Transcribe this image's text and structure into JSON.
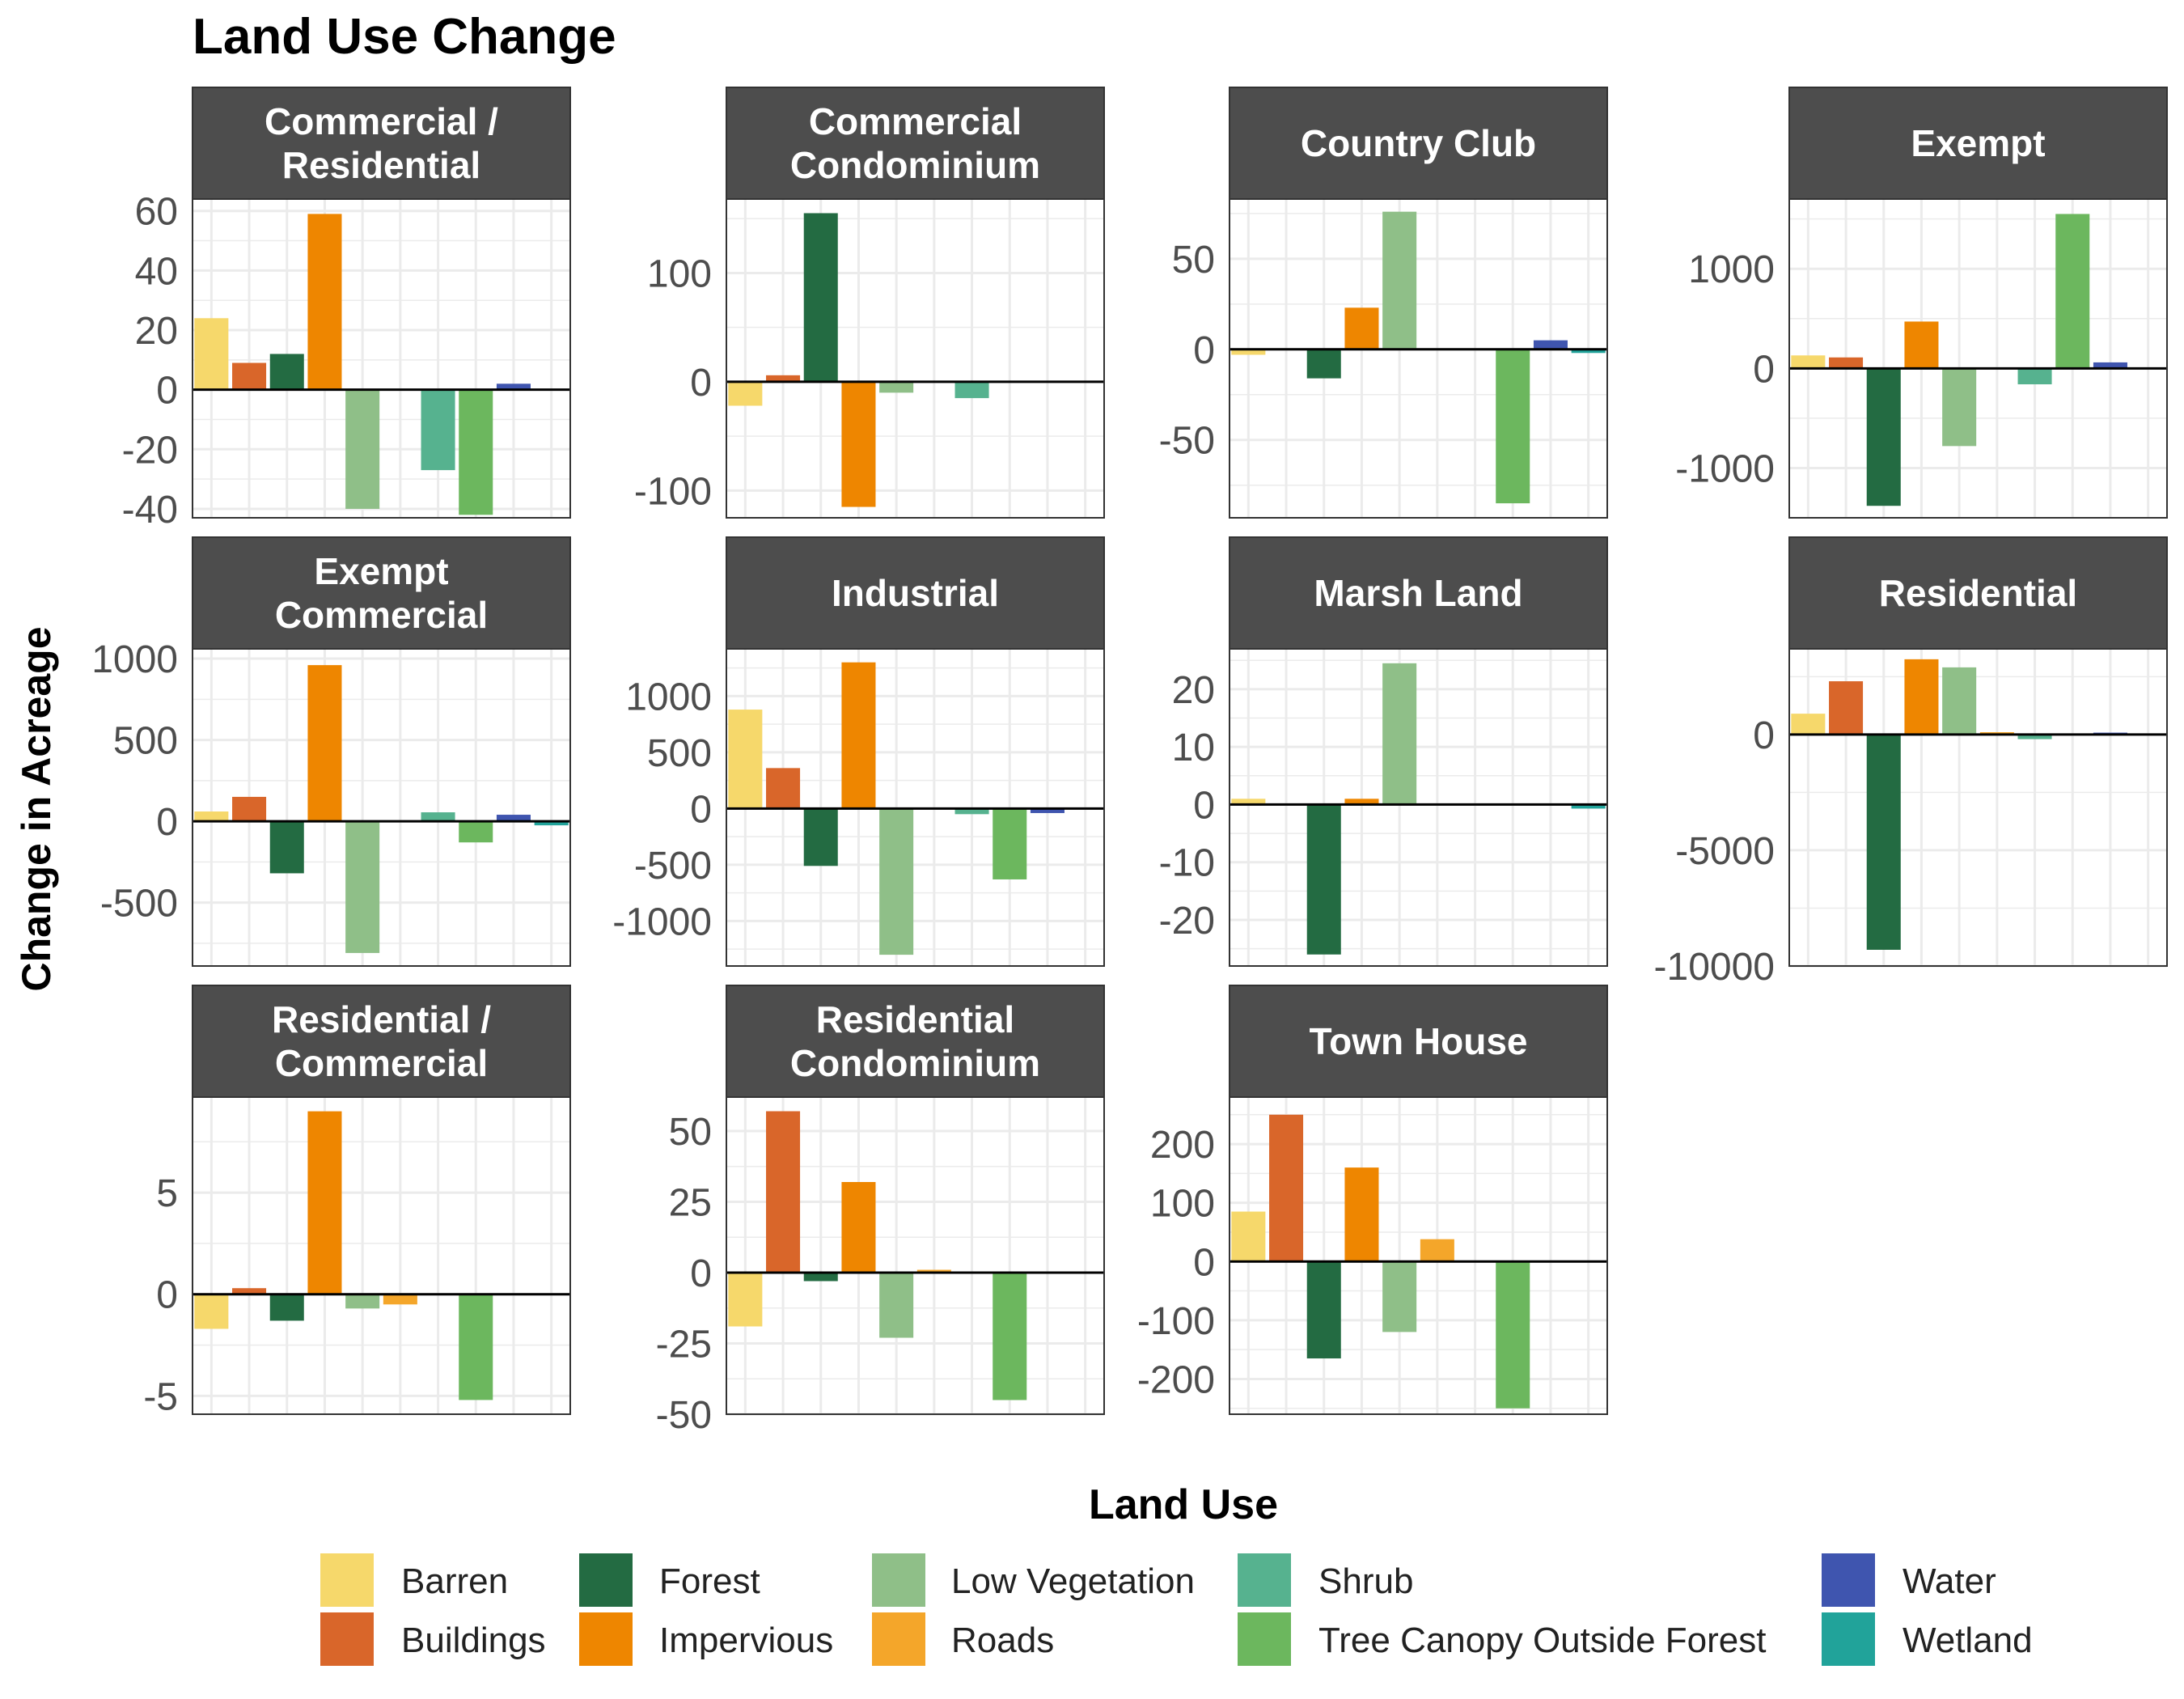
{
  "chart_data": {
    "type": "bar",
    "title": "Land Use Change",
    "ylabel": "Change in Acreage",
    "xlabel": "",
    "legend_title": "Land Use",
    "legend_position": "bottom",
    "grid": true,
    "colors": {
      "Barren": "#F6D86B",
      "Buildings": "#D9662A",
      "Forest": "#236B42",
      "Impervious": "#EE8600",
      "Low Vegetation": "#8FBF88",
      "Roads": "#F4A62A",
      "Shrub": "#56B28F",
      "Tree Canopy Outside Forest": "#6CB75E",
      "Water": "#3F55AF",
      "Wetland": "#21A39A"
    },
    "legend": [
      "Barren",
      "Buildings",
      "Forest",
      "Impervious",
      "Low Vegetation",
      "Roads",
      "Shrub",
      "Tree Canopy Outside Forest",
      "Water",
      "Wetland"
    ],
    "categories": [
      "Barren",
      "Buildings",
      "Forest",
      "Impervious",
      "Low Vegetation",
      "Roads",
      "Shrub",
      "Tree Canopy Outside Forest",
      "Water",
      "Wetland"
    ],
    "panels": [
      {
        "title_lines": [
          "Commercial /",
          "Residential"
        ],
        "ylim": [
          -43,
          64
        ],
        "ticks": [
          60,
          40,
          20,
          0,
          -20,
          -40
        ],
        "tick_labels": [
          "60",
          "40",
          "20",
          "0",
          "-20",
          "-40"
        ],
        "values": [
          24,
          9,
          12,
          59,
          -40,
          0,
          -27,
          -42,
          2,
          0
        ]
      },
      {
        "title_lines": [
          "Commercial",
          "Condominium"
        ],
        "ylim": [
          -125,
          168
        ],
        "ticks": [
          100,
          0,
          -100
        ],
        "tick_labels": [
          "100",
          "0",
          "-100"
        ],
        "values": [
          -22,
          6,
          155,
          -115,
          -10,
          0,
          -15,
          0,
          0,
          0
        ]
      },
      {
        "title_lines": [
          "Country Club"
        ],
        "ylim": [
          -93,
          83
        ],
        "ticks": [
          50,
          0,
          -50
        ],
        "tick_labels": [
          "50",
          "0",
          "-50"
        ],
        "values": [
          -3,
          0,
          -16,
          23,
          76,
          0,
          0,
          -85,
          5,
          -2
        ]
      },
      {
        "title_lines": [
          "Exempt"
        ],
        "ylim": [
          -1500,
          1700
        ],
        "ticks": [
          1000,
          0,
          -1000
        ],
        "tick_labels": [
          "1000",
          "0",
          "-1000"
        ],
        "values": [
          130,
          110,
          -1380,
          470,
          -780,
          0,
          -160,
          1550,
          60,
          0
        ]
      },
      {
        "title_lines": [
          "Exempt",
          "Commercial"
        ],
        "ylim": [
          -890,
          1060
        ],
        "ticks": [
          1000,
          500,
          0,
          -500
        ],
        "tick_labels": [
          "1000",
          "500",
          "0",
          "-500"
        ],
        "values": [
          60,
          150,
          -320,
          960,
          -810,
          0,
          55,
          -130,
          40,
          -25
        ]
      },
      {
        "title_lines": [
          "Industrial"
        ],
        "ylim": [
          -1400,
          1420
        ],
        "ticks": [
          1000,
          500,
          0,
          -500,
          -1000
        ],
        "tick_labels": [
          "1000",
          "500",
          "0",
          "-500",
          "-1000"
        ],
        "values": [
          880,
          360,
          -510,
          1300,
          -1300,
          0,
          -50,
          -630,
          -40,
          0
        ]
      },
      {
        "title_lines": [
          "Marsh Land"
        ],
        "ylim": [
          -28,
          27
        ],
        "ticks": [
          20,
          10,
          0,
          -10,
          -20
        ],
        "tick_labels": [
          "20",
          "10",
          "0",
          "-10",
          "-20"
        ],
        "values": [
          1,
          0,
          -26,
          1,
          24.5,
          0,
          0,
          0,
          0,
          -0.7
        ]
      },
      {
        "title_lines": [
          "Residential"
        ],
        "ylim": [
          -10000,
          3700
        ],
        "ticks": [
          0,
          -5000,
          -10000
        ],
        "tick_labels": [
          "0",
          "-5000",
          "-10000"
        ],
        "values": [
          900,
          2300,
          -9300,
          3250,
          2900,
          100,
          -200,
          0,
          80,
          0
        ]
      },
      {
        "title_lines": [
          "Residential /",
          "Commercial"
        ],
        "ylim": [
          -5.9,
          9.7
        ],
        "ticks": [
          5,
          0,
          -5
        ],
        "tick_labels": [
          "5",
          "0",
          "-5"
        ],
        "values": [
          -1.7,
          0.3,
          -1.3,
          9,
          -0.7,
          -0.5,
          0,
          -5.2,
          0,
          0
        ]
      },
      {
        "title_lines": [
          "Residential",
          "Condominium"
        ],
        "ylim": [
          -50,
          62
        ],
        "ticks": [
          50,
          25,
          0,
          -25,
          -50
        ],
        "tick_labels": [
          "50",
          "25",
          "0",
          "-25",
          "-50"
        ],
        "values": [
          -19,
          57,
          -3,
          32,
          -23,
          1,
          0,
          -45,
          0,
          0
        ]
      },
      {
        "title_lines": [
          "Town House"
        ],
        "ylim": [
          -260,
          280
        ],
        "ticks": [
          200,
          100,
          0,
          -100,
          -200
        ],
        "tick_labels": [
          "200",
          "100",
          "0",
          "-100",
          "-200"
        ],
        "values": [
          85,
          250,
          -165,
          160,
          -120,
          38,
          0,
          -250,
          0,
          0
        ]
      }
    ]
  }
}
